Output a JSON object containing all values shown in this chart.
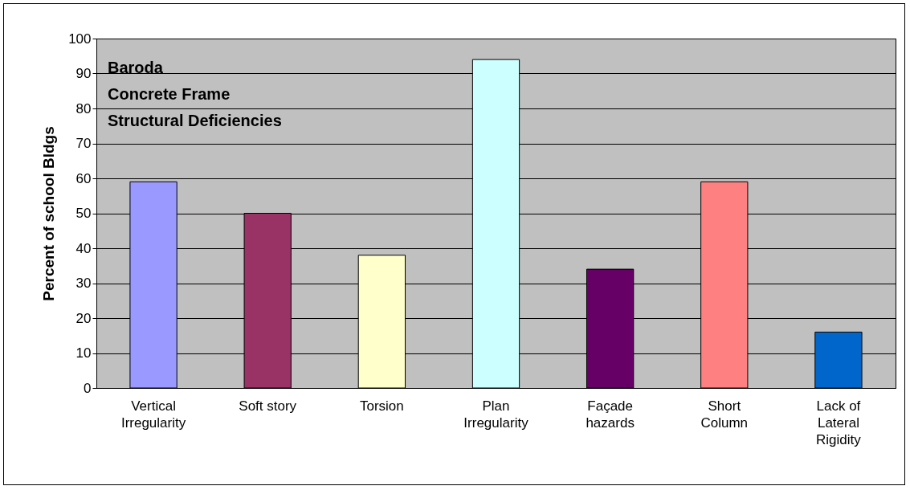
{
  "chart_data": {
    "type": "bar",
    "title": "Baroda\nConcrete Frame\nStructural Deficiencies",
    "ylabel": "Percent of school Bldgs",
    "categories": [
      "Vertical Irregularity",
      "Soft story",
      "Torsion",
      "Plan Irregularity",
      "Façade hazards",
      "Short Column",
      "Lack of Lateral Rigidity"
    ],
    "values": [
      59,
      50,
      38,
      94,
      34,
      59,
      16
    ],
    "colors": [
      "#9999ff",
      "#993366",
      "#ffffcc",
      "#ccffff",
      "#660066",
      "#ff8080",
      "#0066cc"
    ],
    "ylim": [
      0,
      100
    ],
    "yticks": [
      0,
      10,
      20,
      30,
      40,
      50,
      60,
      70,
      80,
      90,
      100
    ],
    "grid": "y"
  }
}
